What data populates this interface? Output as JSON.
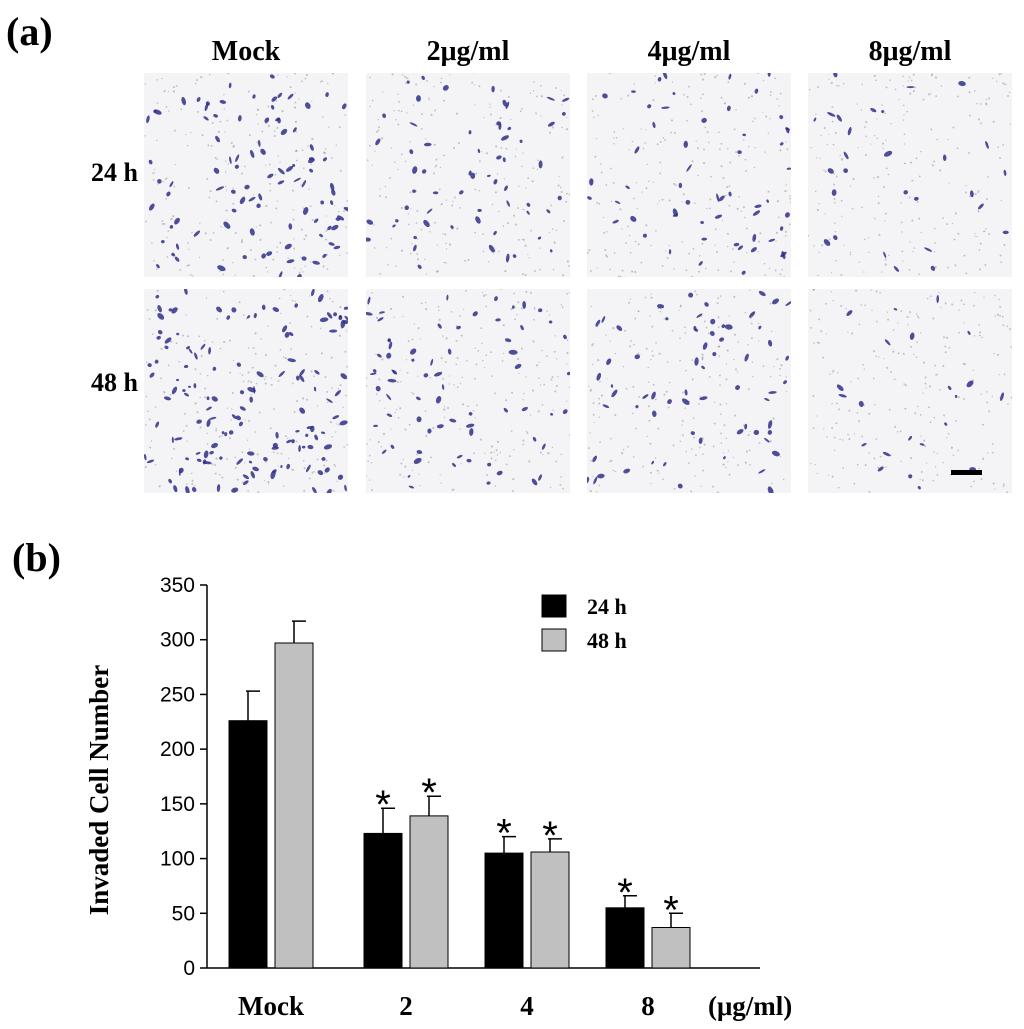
{
  "panel_a": {
    "label": "(a)",
    "column_headers": [
      "Mock",
      "2μg/ml",
      "4μg/ml",
      "8μg/ml"
    ],
    "row_headers": [
      "24 h",
      "48 h"
    ],
    "micrographs": [
      [
        {
          "cells": 95
        },
        {
          "cells": 60
        },
        {
          "cells": 55
        },
        {
          "cells": 28
        }
      ],
      [
        {
          "cells": 140
        },
        {
          "cells": 70
        },
        {
          "cells": 65
        },
        {
          "cells": 22
        }
      ]
    ],
    "stain_color": "#2f2f8a",
    "scale_bar_visible": true
  },
  "panel_b": {
    "label": "(b)",
    "unit_label": "(μg/ml)"
  },
  "chart_data": {
    "type": "bar",
    "categories": [
      "Mock",
      "2",
      "4",
      "8"
    ],
    "series": [
      {
        "name": "24 h",
        "values": [
          226,
          123,
          105,
          55
        ],
        "errors": [
          27,
          23,
          15,
          11
        ],
        "significant": [
          false,
          true,
          true,
          true
        ],
        "color": "#000000"
      },
      {
        "name": "48 h",
        "values": [
          297,
          139,
          106,
          37
        ],
        "errors": [
          20,
          18,
          12,
          13
        ],
        "significant": [
          false,
          true,
          true,
          true
        ],
        "color": "#c0c0c0"
      }
    ],
    "ylabel": "Invaded Cell Number",
    "xlabel": "",
    "ylim": [
      0,
      350
    ],
    "yticks": [
      0,
      50,
      100,
      150,
      200,
      250,
      300,
      350
    ],
    "significance_marker": "*",
    "legend_position": "top-right",
    "grid": false
  }
}
